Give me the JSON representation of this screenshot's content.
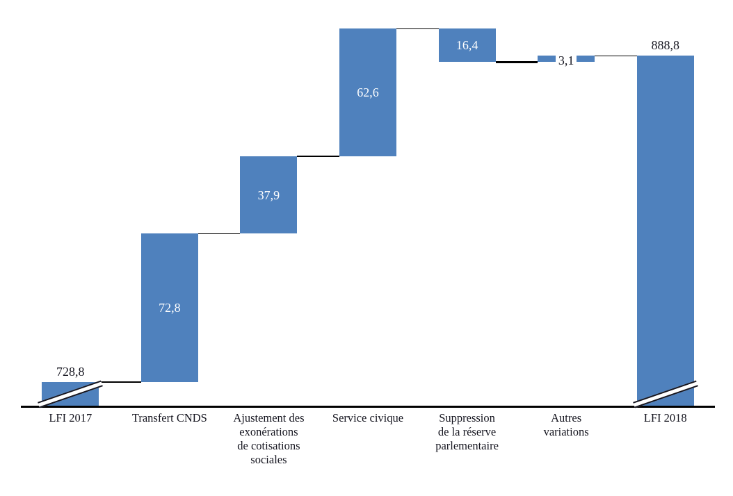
{
  "chart_data": {
    "type": "waterfall",
    "title": "",
    "xlabel": "",
    "ylabel": "",
    "legend": "none",
    "grid": false,
    "decimal_separator": ",",
    "categories": [
      "LFI 2017",
      "Transfert CNDS",
      "Ajustement des\nexonérations\nde cotisations\nsociales",
      "Service civique",
      "Suppression\nde la réserve\nparlementaire",
      "Autres\nvariations",
      "LFI 2018"
    ],
    "steps": [
      {
        "label": "LFI 2017",
        "type": "total",
        "value": 728.8,
        "display": "728,8",
        "axis_break": true,
        "label_position": "above"
      },
      {
        "label": "Transfert CNDS",
        "type": "delta",
        "value": 72.8,
        "display": "72,8",
        "axis_break": false,
        "label_position": "inside"
      },
      {
        "label": "Ajustement des exonérations de cotisations sociales",
        "type": "delta",
        "value": 37.9,
        "display": "37,9",
        "axis_break": false,
        "label_position": "inside"
      },
      {
        "label": "Service civique",
        "type": "delta",
        "value": 62.6,
        "display": "62,6",
        "axis_break": false,
        "label_position": "inside"
      },
      {
        "label": "Suppression de la réserve parlementaire",
        "type": "delta",
        "value": -16.4,
        "display": "16,4",
        "axis_break": false,
        "label_position": "inside"
      },
      {
        "label": "Autres variations",
        "type": "delta",
        "value": 3.1,
        "display": "3,1",
        "axis_break": false,
        "label_position": "chip-on-bar"
      },
      {
        "label": "LFI 2018",
        "type": "total",
        "value": 888.8,
        "display": "888,8",
        "axis_break": true,
        "label_position": "above"
      }
    ],
    "cumulative_levels": [
      728.8,
      801.6,
      839.5,
      902.1,
      885.7,
      888.8,
      888.8
    ],
    "colors": {
      "bar": "#4f81bd",
      "label_inside": "#ffffff",
      "label_dark": "#15151f",
      "connector": "#000000",
      "axis": "#000000",
      "background": "#ffffff"
    },
    "layout_hints": {
      "axis_break_on_total_bars": true,
      "value_axis_visible": false,
      "baseline_represents": "broken axis (not zero)"
    }
  }
}
